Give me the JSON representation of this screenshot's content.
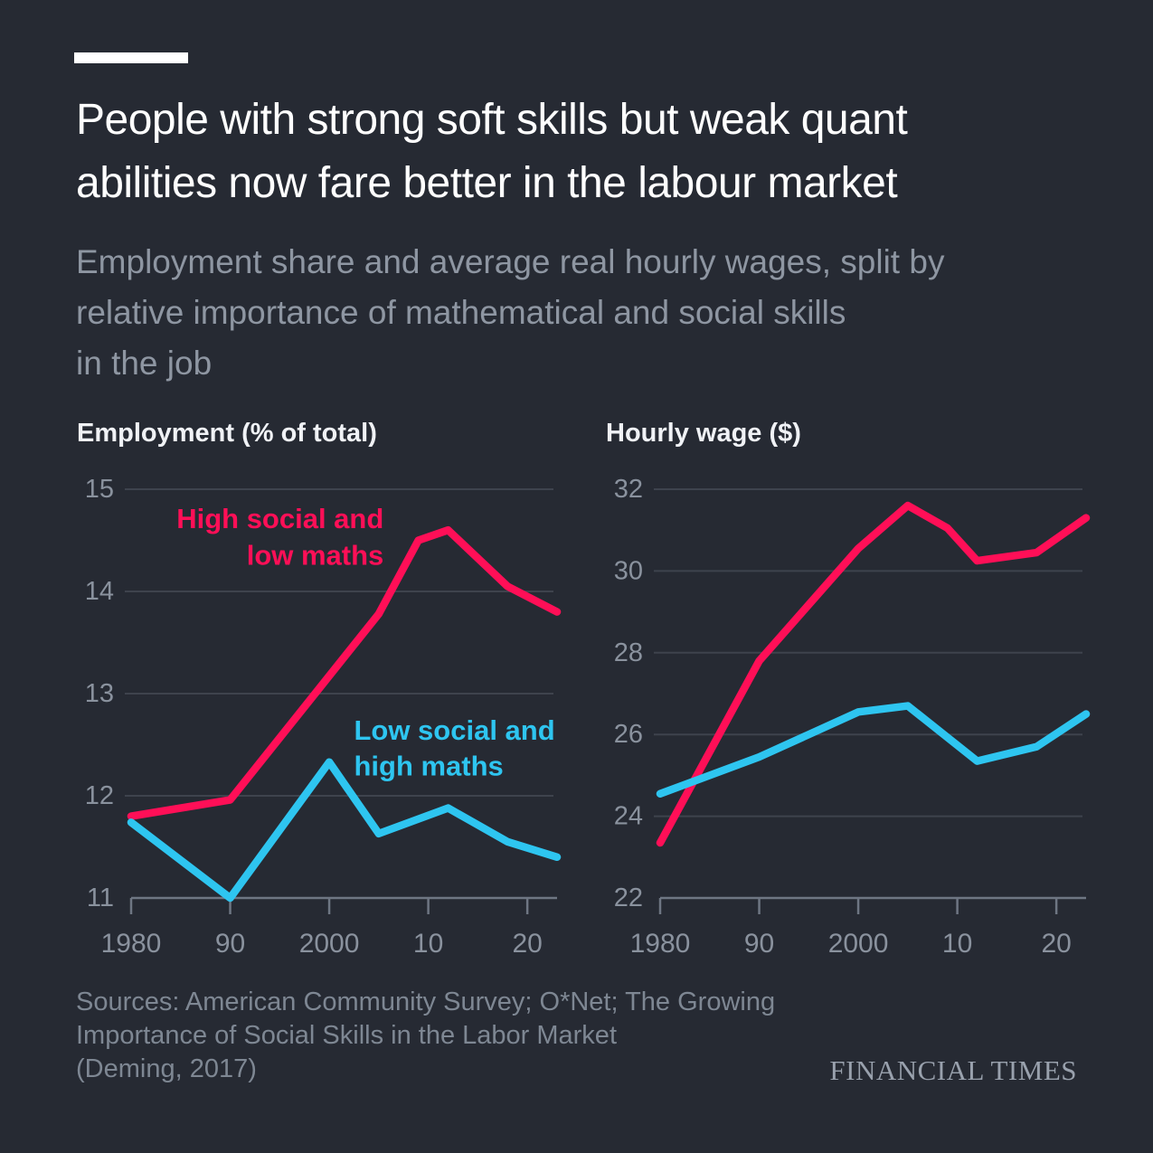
{
  "header": {
    "title_lines": [
      "People with strong soft skills but weak quant",
      "abilities now fare better in the labour market"
    ],
    "subtitle_lines": [
      "Employment share and average real hourly wages, split by",
      "relative importance of mathematical and social skills",
      "in the job"
    ]
  },
  "colors": {
    "background": "#262a33",
    "title": "#ffffff",
    "subtitle": "#8e96a2",
    "chart_title": "#f0f2f6",
    "tick_label": "#8a929e",
    "gridline": "#3e434d",
    "axis": "#6e7683",
    "series_pink": "#ff0f57",
    "series_cyan": "#2ec5f0",
    "source": "#7e8793",
    "brand": "#99a1ad"
  },
  "chart_data": [
    {
      "type": "line",
      "title": "Employment (% of total)",
      "xlim": [
        1980,
        2023
      ],
      "ylim": [
        11,
        15
      ],
      "yticks": [
        11,
        12,
        13,
        14,
        15
      ],
      "xticks": [
        1980,
        1990,
        2000,
        2010,
        2020
      ],
      "xtick_labels": [
        "1980",
        "90",
        "2000",
        "10",
        "20"
      ],
      "grid": true,
      "legend_position": "annotated-on-chart",
      "series": [
        {
          "name": "High social and low maths",
          "color_key": "series_pink",
          "x": [
            1980,
            1990,
            2005,
            2009,
            2012,
            2018,
            2023
          ],
          "y": [
            11.8,
            11.96,
            13.78,
            14.5,
            14.6,
            14.05,
            13.8
          ],
          "label": {
            "lines": [
              "High social and",
              "low maths"
            ],
            "anchor": "end",
            "x": 2005.5,
            "y": [
              14.62,
              14.26
            ]
          }
        },
        {
          "name": "Low social and high maths",
          "color_key": "series_cyan",
          "x": [
            1980,
            1990,
            2000,
            2005,
            2012,
            2018,
            2023
          ],
          "y": [
            11.74,
            11.0,
            12.33,
            11.63,
            11.88,
            11.55,
            11.4
          ],
          "label": {
            "lines": [
              "Low social and",
              "high maths"
            ],
            "anchor": "start",
            "x": 2002.5,
            "y": [
              12.55,
              12.2
            ]
          }
        }
      ]
    },
    {
      "type": "line",
      "title": "Hourly wage ($)",
      "xlim": [
        1980,
        2023
      ],
      "ylim": [
        22,
        32
      ],
      "yticks": [
        22,
        24,
        26,
        28,
        30,
        32
      ],
      "xticks": [
        1980,
        1990,
        2000,
        2010,
        2020
      ],
      "xtick_labels": [
        "1980",
        "90",
        "2000",
        "10",
        "20"
      ],
      "grid": true,
      "legend_position": "none",
      "series": [
        {
          "name": "High social and low maths",
          "color_key": "series_pink",
          "x": [
            1980,
            1990,
            2000,
            2005,
            2009,
            2012,
            2018,
            2023
          ],
          "y": [
            23.35,
            27.8,
            30.55,
            31.6,
            31.05,
            30.25,
            30.45,
            31.3
          ]
        },
        {
          "name": "Low social and high maths",
          "color_key": "series_cyan",
          "x": [
            1980,
            1990,
            2000,
            2005,
            2012,
            2018,
            2023
          ],
          "y": [
            24.55,
            25.45,
            26.55,
            26.7,
            25.35,
            25.7,
            26.5
          ]
        }
      ]
    }
  ],
  "footer": {
    "source_lines": [
      "Sources: American Community Survey; O*Net; The Growing",
      "Importance of Social Skills in the Labor Market",
      "(Deming, 2017)"
    ],
    "brand": "FINANCIAL TIMES"
  }
}
